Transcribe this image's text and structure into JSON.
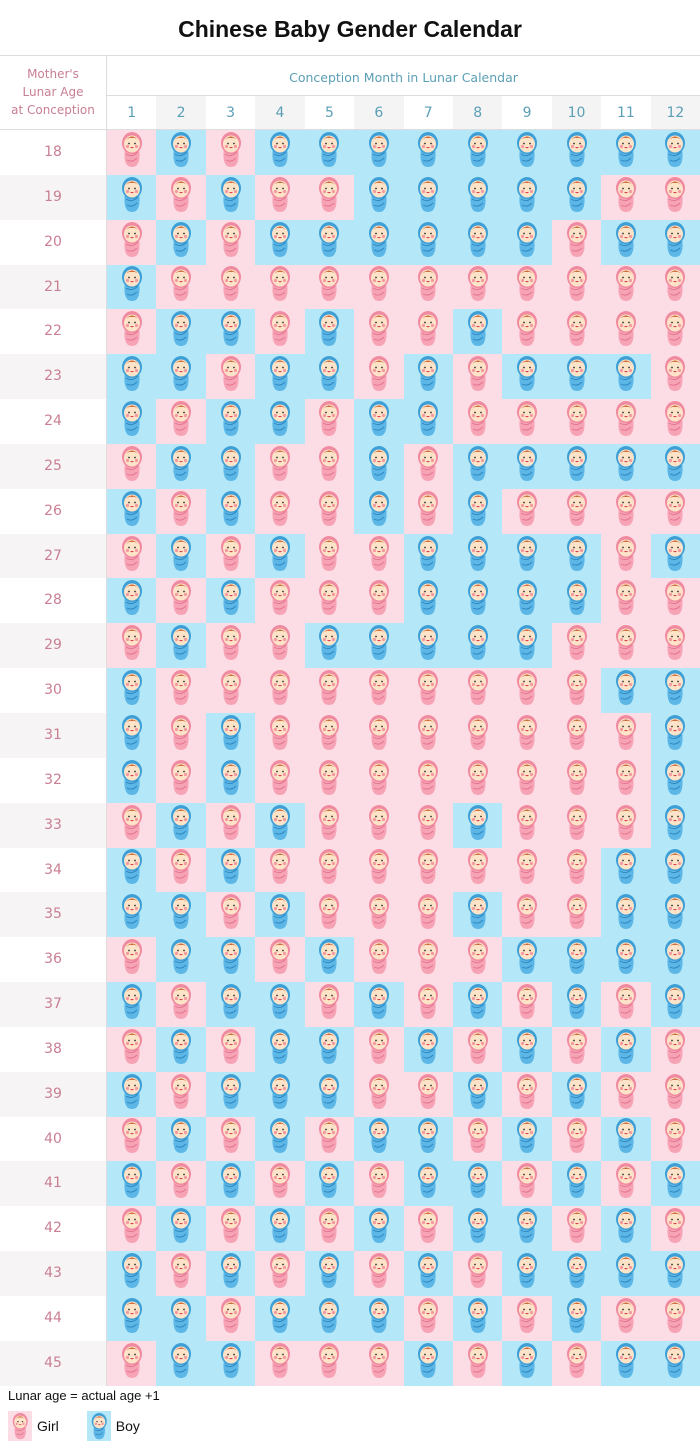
{
  "title": "Chinese Baby Gender Calendar",
  "corner_label": "Mother's\nLunar Age\nat Conception",
  "month_header": "Conception Month in Lunar Calendar",
  "months": [
    "1",
    "2",
    "3",
    "4",
    "5",
    "6",
    "7",
    "8",
    "9",
    "10",
    "11",
    "12"
  ],
  "colors": {
    "girl": "#fddde5",
    "boy": "#b4e7f8",
    "label": "#c97f93",
    "header": "#5b9fb6"
  },
  "rows": [
    {
      "age": "18",
      "cells": "GBGBBBBBBBBB"
    },
    {
      "age": "19",
      "cells": "BGBGGBBBBBGG"
    },
    {
      "age": "20",
      "cells": "GBGBBBBBBGBB"
    },
    {
      "age": "21",
      "cells": "BGGGGGGGGGGG"
    },
    {
      "age": "22",
      "cells": "GBBGBGGBGGGG"
    },
    {
      "age": "23",
      "cells": "BBGBBGBGBBBG"
    },
    {
      "age": "24",
      "cells": "BGBBGBBGGGGG"
    },
    {
      "age": "25",
      "cells": "GBBGGBGBBBBB"
    },
    {
      "age": "26",
      "cells": "BGBGGBGBGGGG"
    },
    {
      "age": "27",
      "cells": "GBGBGGBBBBGB"
    },
    {
      "age": "28",
      "cells": "BGBGGGBBBBGG"
    },
    {
      "age": "29",
      "cells": "GBGGBBBBBGGG"
    },
    {
      "age": "30",
      "cells": "BGGGGGGGGGBB"
    },
    {
      "age": "31",
      "cells": "BGBGGGGGGGGB"
    },
    {
      "age": "32",
      "cells": "BGBGGGGGGGGB"
    },
    {
      "age": "33",
      "cells": "GBGBGGGBGGGB"
    },
    {
      "age": "34",
      "cells": "BGBGGGGGGGBB"
    },
    {
      "age": "35",
      "cells": "BBGBGGGBGGBB"
    },
    {
      "age": "36",
      "cells": "GBBGBGGGBBBB"
    },
    {
      "age": "37",
      "cells": "BGBBGBGBGBGB"
    },
    {
      "age": "38",
      "cells": "GBGBBGBGBGBG"
    },
    {
      "age": "39",
      "cells": "BGBBBGGBGBGG"
    },
    {
      "age": "40",
      "cells": "GBGBGBBGBGBG"
    },
    {
      "age": "41",
      "cells": "BGBGBGBBGBGB"
    },
    {
      "age": "42",
      "cells": "GBGBGBGBBGBG"
    },
    {
      "age": "43",
      "cells": "BGBGBGBGBBBB"
    },
    {
      "age": "44",
      "cells": "BBGBBBGBGBGG"
    },
    {
      "age": "45",
      "cells": "GBBGGGBGBGBB"
    }
  ],
  "note": "Lunar age = actual age +1",
  "legend": {
    "girl": "Girl",
    "boy": "Boy",
    "girl_icon": "baby-girl-icon",
    "boy_icon": "baby-boy-icon"
  }
}
